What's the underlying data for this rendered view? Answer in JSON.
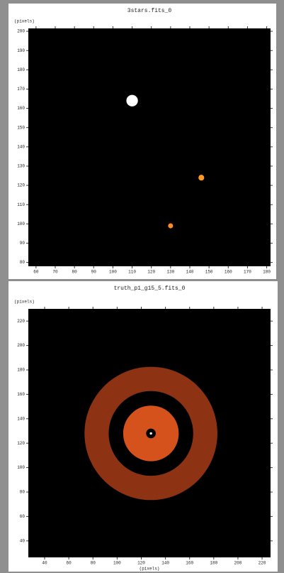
{
  "chart_data": [
    {
      "type": "image",
      "title": "3stars.fits_0",
      "ylabel": "(pixels)",
      "x": [
        110,
        146,
        130
      ],
      "y": [
        164,
        124,
        99
      ],
      "sizes": [
        3,
        1.5,
        1.3
      ],
      "colors": [
        "#ffffff",
        "#ff9a2a",
        "#ff8a20"
      ],
      "xlim": [
        56,
        182
      ],
      "ylim": [
        78,
        201.5
      ],
      "xticks": [
        60,
        70,
        80,
        90,
        100,
        110,
        120,
        130,
        140,
        150,
        160,
        170,
        180
      ],
      "yticks": [
        80,
        90,
        100,
        110,
        120,
        130,
        140,
        150,
        160,
        170,
        180,
        190,
        200
      ]
    },
    {
      "type": "rings",
      "title": "truth_p1_g15_5.fits_0",
      "ylabel": "(pixels)",
      "xlabel": "(pixels)",
      "center": [
        128,
        128
      ],
      "radii": [
        55,
        35,
        23,
        4,
        1
      ],
      "colors": [
        "#8e3214",
        "#000000",
        "#d6521c",
        "#000000",
        "#ffffff"
      ],
      "xlim": [
        26.5,
        227
      ],
      "ylim": [
        26.5,
        230
      ],
      "xticks": [
        40,
        60,
        80,
        100,
        120,
        140,
        160,
        180,
        200,
        220
      ],
      "yticks": [
        40,
        60,
        80,
        100,
        120,
        140,
        160,
        180,
        200,
        220
      ]
    }
  ]
}
